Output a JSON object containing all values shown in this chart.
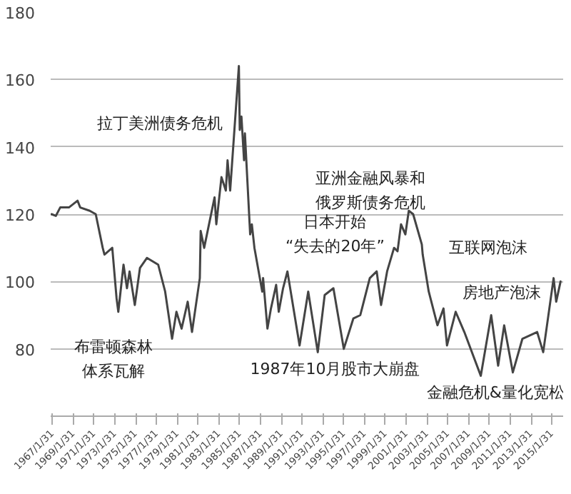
{
  "chart_data": {
    "type": "line",
    "color": "#444444",
    "grid": "y",
    "line_style": "solid",
    "marker": "none",
    "x": [
      "1967-01",
      "1967-06",
      "1967-11",
      "1968-09",
      "1969-07",
      "1969-10",
      "1970-09",
      "1971-04",
      "1971-12",
      "1972-02",
      "1972-11",
      "1973-04",
      "1973-06",
      "1973-12",
      "1974-04",
      "1974-07",
      "1975-01",
      "1975-07",
      "1976-03",
      "1977-04",
      "1977-12",
      "1978-08",
      "1979-01",
      "1979-07",
      "1980-02",
      "1980-07",
      "1981-04",
      "1981-05",
      "1981-09",
      "1982-09",
      "1982-11",
      "1983-05",
      "1983-10",
      "1983-12",
      "1984-03",
      "1985-01",
      "1985-02",
      "1985-04",
      "1985-07",
      "1985-08",
      "1986-02",
      "1986-04",
      "1986-07",
      "1987-04",
      "1987-05",
      "1987-10",
      "1988-02",
      "1988-08",
      "1988-11",
      "1989-04",
      "1989-09",
      "1990-11",
      "1991-09",
      "1992-08",
      "1993-04",
      "1994-02",
      "1995-02",
      "1996-01",
      "1996-09",
      "1997-08",
      "1998-04",
      "1998-09",
      "1999-04",
      "1999-12",
      "2000-04",
      "2000-08",
      "2001-01",
      "2001-05",
      "2001-10",
      "2002-08",
      "2002-09",
      "2003-04",
      "2004-02",
      "2004-09",
      "2005-01",
      "2005-11",
      "2006-09",
      "2008-04",
      "2009-04",
      "2009-12",
      "2010-07",
      "2011-05",
      "2012-04",
      "2013-09",
      "2014-04",
      "2015-04",
      "2015-07",
      "2015-12"
    ],
    "values": [
      120,
      119.5,
      122,
      122,
      124,
      122,
      121,
      120,
      110,
      108,
      110,
      95,
      91,
      105,
      98,
      103,
      93,
      104,
      107,
      105,
      97,
      83,
      91,
      86,
      94,
      85,
      101,
      115,
      110,
      125,
      117,
      131,
      127,
      136,
      127,
      164,
      145,
      149,
      136,
      144,
      114,
      117,
      110,
      97,
      101,
      86,
      92,
      99,
      91,
      98,
      103,
      81,
      97,
      79,
      96,
      98,
      80,
      89,
      90,
      101,
      103,
      93,
      103,
      110,
      109,
      117,
      114,
      121,
      120,
      111,
      108,
      97,
      87,
      92,
      81,
      91,
      85,
      72,
      90,
      75,
      87,
      73,
      83,
      85,
      79,
      101,
      94,
      100
    ],
    "xlim": [
      "1966-12",
      "2016-03"
    ],
    "xticks": [
      {
        "value": "1967-01-31",
        "label": "1967/1/31"
      },
      {
        "value": "1969-01-31",
        "label": "1969/1/31"
      },
      {
        "value": "1971-01-31",
        "label": "1971/1/31"
      },
      {
        "value": "1973-01-31",
        "label": "1973/1/31"
      },
      {
        "value": "1975-01-31",
        "label": "1975/1/31"
      },
      {
        "value": "1977-01-31",
        "label": "1977/1/31"
      },
      {
        "value": "1979-01-31",
        "label": "1979/1/31"
      },
      {
        "value": "1981-01-31",
        "label": "1981/1/31"
      },
      {
        "value": "1983-01-31",
        "label": "1983/1/31"
      },
      {
        "value": "1985-01-31",
        "label": "1985/1/31"
      },
      {
        "value": "1987-01-31",
        "label": "1987/1/31"
      },
      {
        "value": "1989-01-31",
        "label": "1989/1/31"
      },
      {
        "value": "1991-01-31",
        "label": "1991/1/31"
      },
      {
        "value": "1993-01-31",
        "label": "1993/1/31"
      },
      {
        "value": "1995-01-31",
        "label": "1995/1/31"
      },
      {
        "value": "1997-01-31",
        "label": "1997/1/31"
      },
      {
        "value": "1999-01-31",
        "label": "1999/1/31"
      },
      {
        "value": "2001-01-31",
        "label": "2001/1/31"
      },
      {
        "value": "2003-01-31",
        "label": "2003/1/31"
      },
      {
        "value": "2005-01-31",
        "label": "2005/1/31"
      },
      {
        "value": "2007-01-31",
        "label": "2007/1/31"
      },
      {
        "value": "2009-01-31",
        "label": "2009/1/31"
      },
      {
        "value": "2011-01-31",
        "label": "2011/1/31"
      },
      {
        "value": "2013-01-31",
        "label": "2013/1/31"
      },
      {
        "value": "2015-01-31",
        "label": "2015/1/31"
      }
    ],
    "ylim": [
      60,
      180
    ],
    "yticks": [
      80,
      100,
      120,
      140,
      160,
      180
    ],
    "annotations": [
      "拉丁美洲债务危机",
      "亚洲金融风暴和俄罗斯债务危机",
      "日本开始“失去的20年”",
      "互联网泡沫",
      "房地产泡沫",
      "布雷顿森林体系瓦解",
      "1987年10月股市大崩盘",
      "金融危机&量化宽松"
    ]
  }
}
